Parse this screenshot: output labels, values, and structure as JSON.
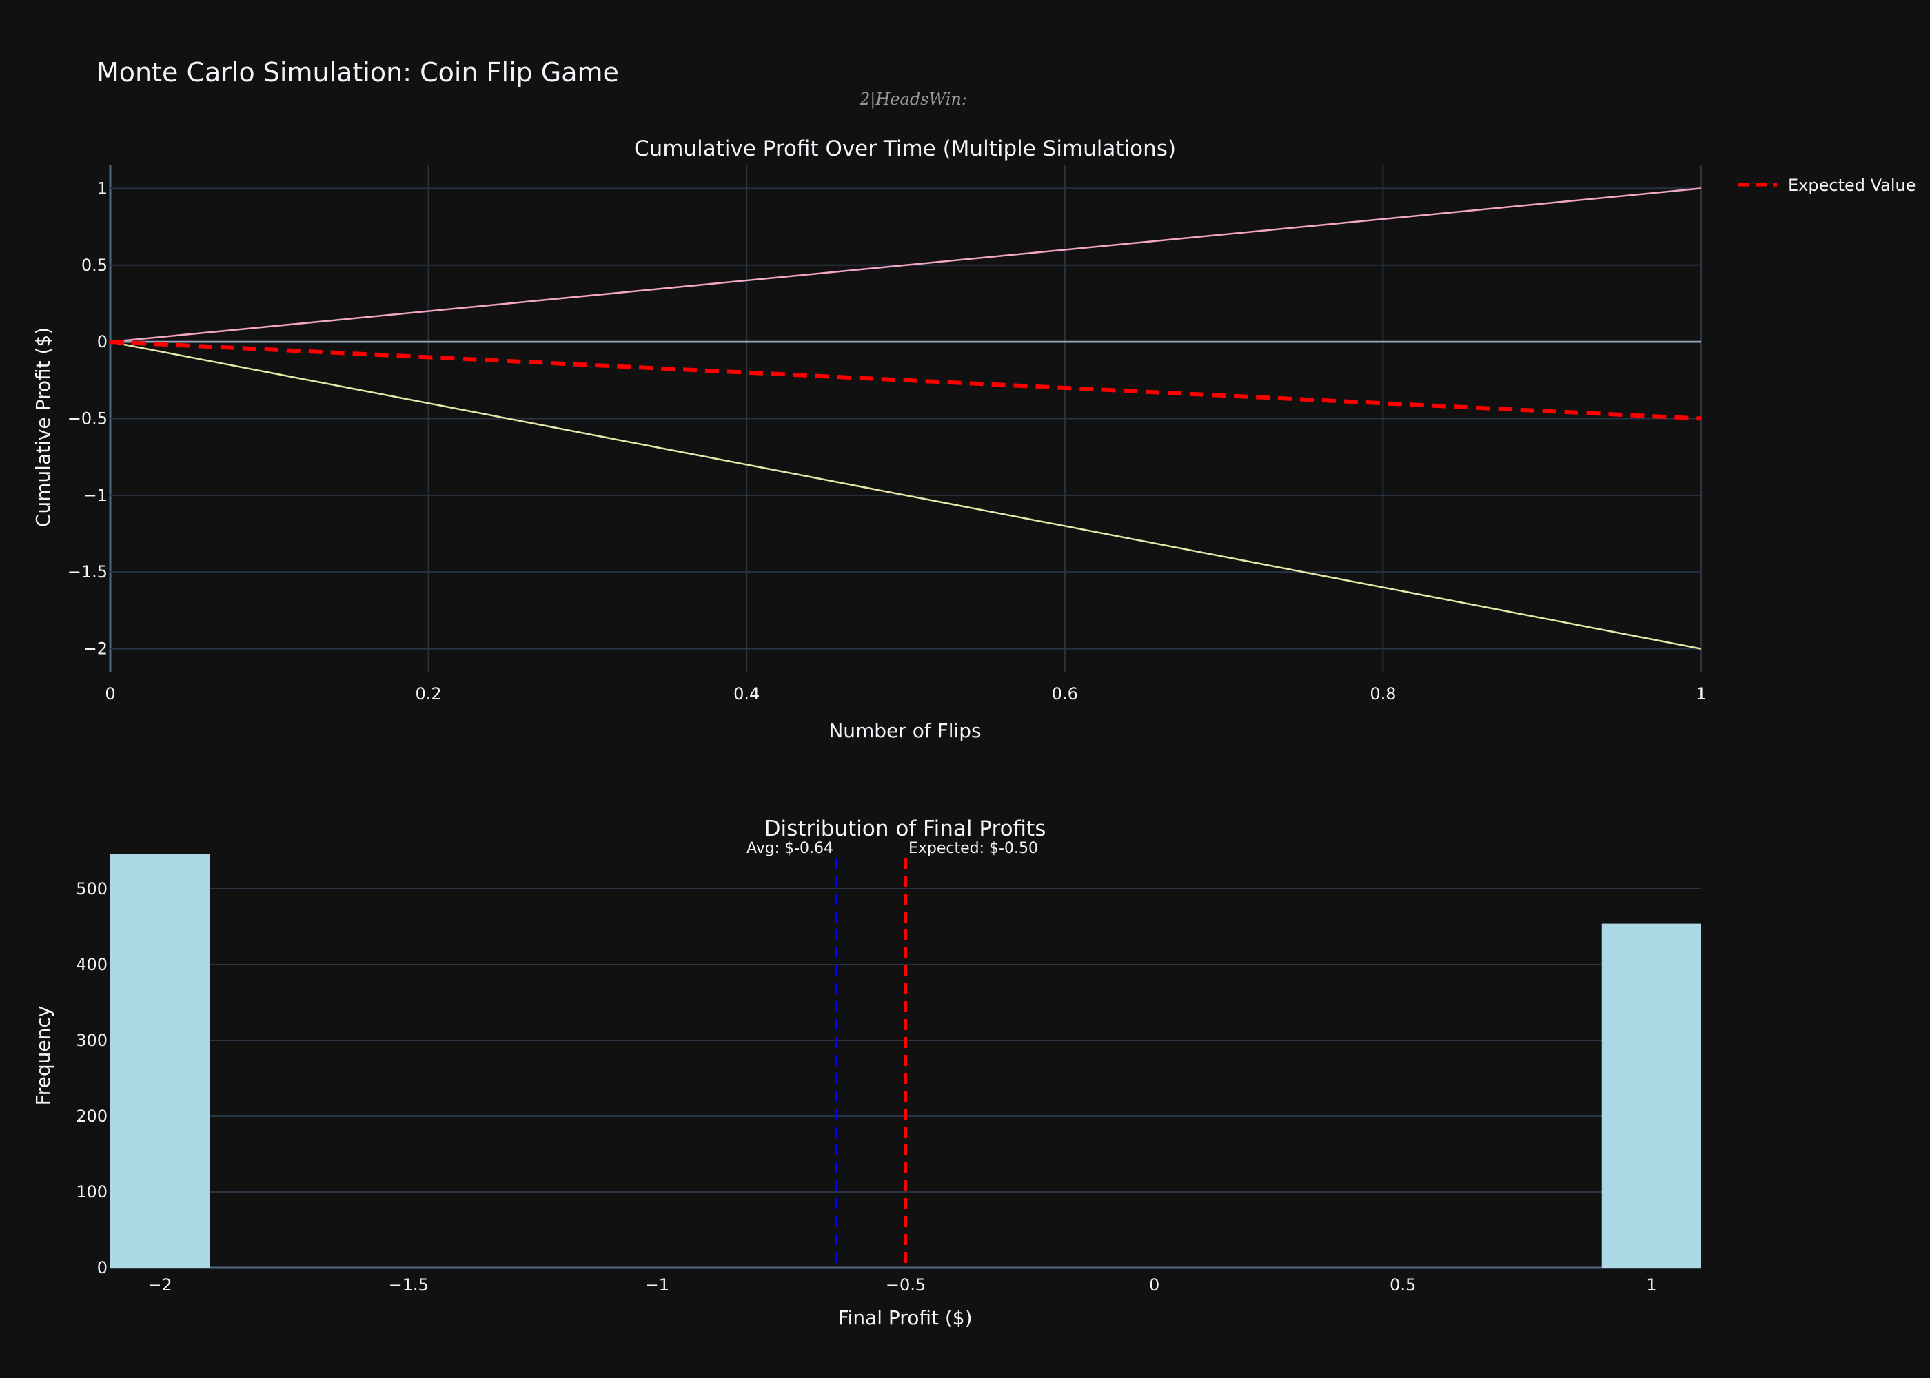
{
  "title": "Monte Carlo Simulation: Coin Flip Game",
  "subtitle": "2|HeadsWin:",
  "colors": {
    "background": "#111111",
    "expected": "#ff0000",
    "average": "#0000ff",
    "histogram_bar": "#add8e6",
    "sim_up": "#f4a6c8",
    "sim_down": "#e6e6a6",
    "sim_flat": "#9aa4b2"
  },
  "chart_data": [
    {
      "type": "line",
      "title": "Cumulative Profit Over Time (Multiple Simulations)",
      "xlabel": "Number of Flips",
      "ylabel": "Cumulative Profit ($)",
      "xlim": [
        0,
        1
      ],
      "ylim": [
        -2.15,
        1.15
      ],
      "xticks": [
        0,
        0.2,
        0.4,
        0.6,
        0.8,
        1
      ],
      "xtick_labels": [
        "0",
        "0.2",
        "0.4",
        "0.6",
        "0.8",
        "1"
      ],
      "yticks": [
        1,
        0.5,
        0,
        -0.5,
        -1,
        -1.5,
        -2
      ],
      "ytick_labels": [
        "1",
        "0.5",
        "0",
        "−0.5",
        "−1",
        "−1.5",
        "−2"
      ],
      "grid": true,
      "legend": {
        "position": "top-right",
        "entries": [
          "Expected Value"
        ]
      },
      "series": [
        {
          "x": [
            0,
            1
          ],
          "y": [
            0,
            1
          ],
          "color": "#f4a6c8",
          "dash": "solid"
        },
        {
          "x": [
            0,
            1
          ],
          "y": [
            0,
            -2
          ],
          "color": "#e6e6a6",
          "dash": "solid"
        },
        {
          "x": [
            0,
            1
          ],
          "y": [
            0,
            0
          ],
          "color": "#9aa4b2",
          "dash": "solid"
        },
        {
          "name": "Expected Value",
          "x": [
            0,
            1
          ],
          "y": [
            0,
            -0.5
          ],
          "color": "#ff0000",
          "dash": "dash"
        }
      ]
    },
    {
      "type": "bar",
      "title": "Distribution of Final Profits",
      "xlabel": "Final Profit ($)",
      "ylabel": "Frequency",
      "xlim": [
        -2.1,
        1.1
      ],
      "ylim": [
        0,
        550
      ],
      "xticks": [
        -2,
        -1.5,
        -1,
        -0.5,
        0,
        0.5,
        1
      ],
      "xtick_labels": [
        "−2",
        "−1.5",
        "−1",
        "−0.5",
        "0",
        "0.5",
        "1"
      ],
      "yticks": [
        0,
        100,
        200,
        300,
        400,
        500
      ],
      "ytick_labels": [
        "0",
        "100",
        "200",
        "300",
        "400",
        "500"
      ],
      "grid": true,
      "bars": [
        {
          "x0": -2.1,
          "x1": -1.9,
          "value": 546
        },
        {
          "x0": 0.9,
          "x1": 1.1,
          "value": 454
        }
      ],
      "vlines": [
        {
          "x": -0.64,
          "label": "Avg: $-0.64",
          "color": "#0000ff",
          "label_side": "left"
        },
        {
          "x": -0.5,
          "label": "Expected: $-0.50",
          "color": "#ff0000",
          "label_side": "right"
        }
      ]
    }
  ]
}
